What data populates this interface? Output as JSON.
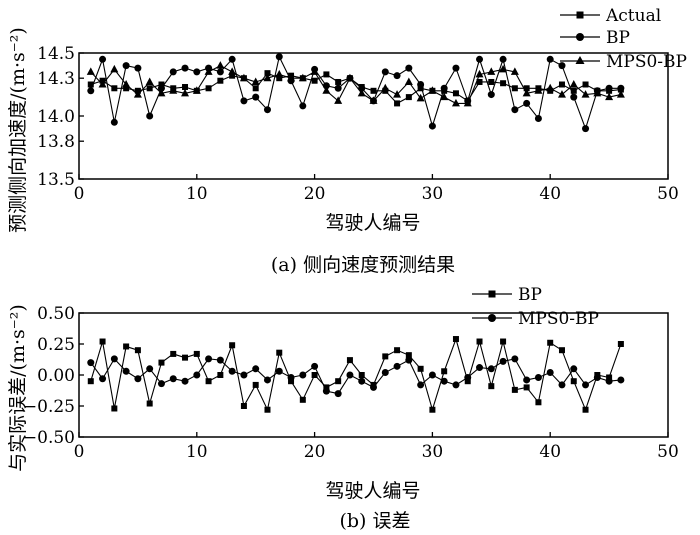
{
  "chart_data": [
    {
      "type": "line",
      "xlabel": "驾驶人编号",
      "ylabel": "预测侧向加速度/(m·s⁻²)",
      "caption": "(a) 侧向速度预测结果",
      "xlim": [
        0,
        50
      ],
      "ylim": [
        13.5,
        14.5
      ],
      "xticks": [
        0,
        10,
        20,
        30,
        40,
        50
      ],
      "yticks": [
        13.5,
        13.8,
        14.0,
        14.3,
        14.5
      ],
      "ytick_labels": [
        "13.5",
        "13.8",
        "14.0",
        "14.3",
        "14.5"
      ],
      "legend_position": "top-right",
      "x": [
        1,
        2,
        3,
        4,
        5,
        6,
        7,
        8,
        9,
        10,
        11,
        12,
        13,
        14,
        15,
        16,
        17,
        18,
        19,
        20,
        21,
        22,
        23,
        24,
        25,
        26,
        27,
        28,
        29,
        30,
        31,
        32,
        33,
        34,
        35,
        36,
        37,
        38,
        39,
        40,
        41,
        42,
        43,
        44,
        45,
        46
      ],
      "series": [
        {
          "name": "Actual",
          "marker": "square",
          "values": [
            14.25,
            14.28,
            14.22,
            14.22,
            14.2,
            14.22,
            14.25,
            14.22,
            14.23,
            14.2,
            14.22,
            14.28,
            14.32,
            14.3,
            14.22,
            14.34,
            14.3,
            14.32,
            14.3,
            14.28,
            14.33,
            14.27,
            14.3,
            14.23,
            14.2,
            14.2,
            14.1,
            14.15,
            14.22,
            14.2,
            14.2,
            14.18,
            14.12,
            14.27,
            14.27,
            14.26,
            14.22,
            14.22,
            14.22,
            14.2,
            14.25,
            14.2,
            14.25,
            14.2,
            14.2,
            14.21
          ]
        },
        {
          "name": "BP",
          "marker": "circle",
          "values": [
            14.2,
            14.45,
            13.95,
            14.4,
            14.38,
            14.0,
            14.22,
            14.35,
            14.38,
            14.35,
            14.38,
            14.35,
            14.45,
            14.12,
            14.15,
            14.05,
            14.47,
            14.28,
            14.08,
            14.37,
            14.24,
            14.22,
            14.3,
            14.22,
            14.12,
            14.35,
            14.32,
            14.38,
            14.25,
            13.92,
            14.22,
            14.38,
            14.12,
            14.45,
            14.17,
            14.45,
            14.05,
            14.1,
            13.98,
            14.45,
            14.4,
            14.15,
            13.9,
            14.2,
            14.22,
            14.22
          ]
        },
        {
          "name": "MPS0-BP",
          "marker": "triangle",
          "values": [
            14.35,
            14.25,
            14.37,
            14.25,
            14.17,
            14.27,
            14.18,
            14.2,
            14.18,
            14.2,
            14.35,
            14.4,
            14.35,
            14.3,
            14.27,
            14.3,
            14.33,
            14.3,
            14.3,
            14.35,
            14.2,
            14.12,
            14.3,
            14.18,
            14.12,
            14.22,
            14.17,
            14.27,
            14.14,
            14.2,
            14.15,
            14.1,
            14.1,
            14.33,
            14.35,
            14.37,
            14.35,
            14.18,
            14.2,
            14.22,
            14.17,
            14.25,
            14.17,
            14.18,
            14.15,
            14.17
          ]
        }
      ]
    },
    {
      "type": "line",
      "xlabel": "驾驶人编号",
      "ylabel": "与实际误差/(m·s⁻²)",
      "caption": "(b) 误差",
      "xlim": [
        0,
        50
      ],
      "ylim": [
        -0.5,
        0.5
      ],
      "xticks": [
        0,
        10,
        20,
        30,
        40,
        50
      ],
      "yticks": [
        -0.5,
        -0.25,
        0,
        0.25,
        0.5
      ],
      "ytick_labels": [
        "−0.50",
        "−0.25",
        "0.00",
        "0.25",
        "0.50"
      ],
      "legend_position": "top-right",
      "x": [
        1,
        2,
        3,
        4,
        5,
        6,
        7,
        8,
        9,
        10,
        11,
        12,
        13,
        14,
        15,
        16,
        17,
        18,
        19,
        20,
        21,
        22,
        23,
        24,
        25,
        26,
        27,
        28,
        29,
        30,
        31,
        32,
        33,
        34,
        35,
        36,
        37,
        38,
        39,
        40,
        41,
        42,
        43,
        44,
        45,
        46
      ],
      "series": [
        {
          "name": "BP",
          "marker": "square",
          "values": [
            -0.05,
            0.27,
            -0.27,
            0.23,
            0.2,
            -0.23,
            0.1,
            0.17,
            0.14,
            0.17,
            -0.05,
            0.0,
            0.24,
            -0.25,
            -0.08,
            -0.28,
            0.18,
            -0.05,
            -0.2,
            0.0,
            -0.1,
            -0.05,
            0.12,
            0.0,
            -0.08,
            0.15,
            0.2,
            0.16,
            0.05,
            -0.28,
            0.03,
            0.29,
            -0.05,
            0.27,
            -0.09,
            0.27,
            -0.12,
            -0.1,
            -0.22,
            0.26,
            0.2,
            -0.05,
            -0.28,
            0.0,
            -0.02,
            0.25
          ]
        },
        {
          "name": "MPS0-BP",
          "marker": "circle",
          "values": [
            0.1,
            -0.03,
            0.13,
            0.03,
            -0.03,
            0.05,
            -0.07,
            -0.03,
            -0.05,
            0.0,
            0.13,
            0.12,
            0.03,
            0.0,
            0.05,
            -0.04,
            0.03,
            -0.02,
            0.0,
            0.07,
            -0.13,
            -0.15,
            0.0,
            -0.05,
            -0.1,
            0.02,
            0.07,
            0.12,
            -0.08,
            0.0,
            -0.05,
            -0.08,
            -0.02,
            0.06,
            0.05,
            0.11,
            0.13,
            -0.04,
            -0.02,
            0.02,
            -0.08,
            0.05,
            -0.08,
            -0.02,
            -0.05,
            -0.04
          ]
        }
      ]
    }
  ]
}
